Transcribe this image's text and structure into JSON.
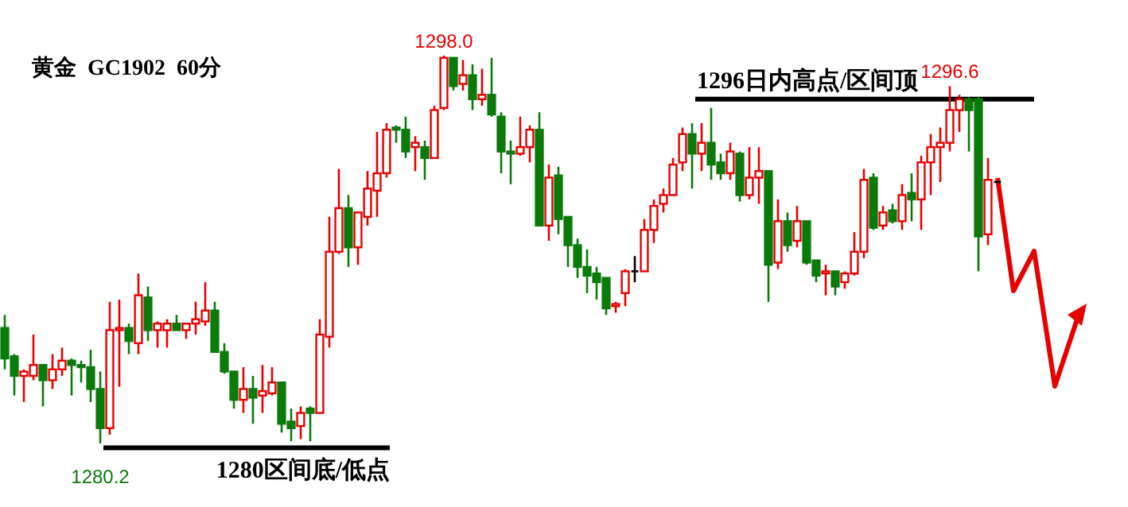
{
  "chart_data": {
    "type": "candlestick",
    "title": "黄金  GC1902  60分",
    "categories": [
      null,
      null,
      null,
      null,
      null,
      null,
      null,
      null,
      null,
      null,
      null,
      null,
      null,
      null,
      null,
      null,
      null,
      null,
      null,
      null,
      null,
      null,
      null,
      null,
      null,
      null,
      null,
      null,
      null,
      null,
      null,
      null,
      null,
      null,
      null,
      null,
      null,
      null,
      null,
      null,
      null,
      null,
      null,
      null,
      null,
      null,
      null,
      null,
      null,
      null,
      null,
      null,
      null,
      null,
      null,
      null,
      null,
      null,
      null,
      null,
      null,
      null,
      null,
      null,
      null,
      null,
      null,
      null,
      null,
      null,
      null,
      null,
      null,
      null,
      null,
      null,
      null,
      null,
      null,
      null,
      null,
      null,
      null,
      null,
      null,
      null,
      null,
      null,
      null,
      null,
      null,
      null,
      null,
      null,
      null,
      null,
      null,
      null,
      null,
      null,
      null,
      null,
      null,
      null,
      null
    ],
    "ohlc": [
      [
        1285.5,
        1286.1,
        1283.6,
        1284.1
      ],
      [
        1284.2,
        1284.3,
        1282.4,
        1283.3
      ],
      [
        1283.3,
        1283.6,
        1282.1,
        1283.5
      ],
      [
        1283.3,
        1285.2,
        1283.1,
        1283.8
      ],
      [
        1283.8,
        1283.8,
        1281.9,
        1283.1
      ],
      [
        1283.1,
        1284.3,
        1282.7,
        1283.6
      ],
      [
        1283.6,
        1284.6,
        1283.3,
        1284.0
      ],
      [
        1284.0,
        1284.1,
        1282.4,
        1283.8
      ],
      [
        1283.8,
        1284.0,
        1283.0,
        1283.7
      ],
      [
        1283.7,
        1284.5,
        1282.1,
        1282.7
      ],
      [
        1282.7,
        1283.5,
        1280.2,
        1280.9
      ],
      [
        1280.9,
        1286.7,
        1280.6,
        1285.4
      ],
      [
        1285.4,
        1286.8,
        1282.8,
        1285.5
      ],
      [
        1285.5,
        1285.7,
        1284.3,
        1284.9
      ],
      [
        1284.8,
        1288.0,
        1284.3,
        1287.0
      ],
      [
        1286.9,
        1287.4,
        1284.9,
        1285.4
      ],
      [
        1285.4,
        1285.8,
        1284.6,
        1285.7
      ],
      [
        1285.4,
        1285.9,
        1284.6,
        1285.7
      ],
      [
        1285.7,
        1286.1,
        1285.4,
        1285.4
      ],
      [
        1285.4,
        1285.7,
        1285.0,
        1285.7
      ],
      [
        1285.7,
        1286.7,
        1285.2,
        1285.9
      ],
      [
        1285.8,
        1287.6,
        1285.6,
        1286.3
      ],
      [
        1286.3,
        1286.7,
        1284.4,
        1284.4
      ],
      [
        1284.4,
        1284.8,
        1283.4,
        1283.5
      ],
      [
        1283.5,
        1283.5,
        1281.8,
        1282.2
      ],
      [
        1282.2,
        1283.7,
        1281.6,
        1282.7
      ],
      [
        1282.7,
        1283.3,
        1281.1,
        1282.3
      ],
      [
        1282.4,
        1283.8,
        1281.6,
        1282.6
      ],
      [
        1282.5,
        1283.7,
        1282.4,
        1283.0
      ],
      [
        1283.0,
        1283.0,
        1280.7,
        1281.1
      ],
      [
        1281.2,
        1281.8,
        1280.3,
        1280.9
      ],
      [
        1281.0,
        1281.9,
        1280.4,
        1281.6
      ],
      [
        1281.8,
        1281.9,
        1280.3,
        1281.6
      ],
      [
        1281.6,
        1285.9,
        1281.6,
        1285.2
      ],
      [
        1285.1,
        1290.6,
        1284.6,
        1289.0
      ],
      [
        1289.0,
        1292.8,
        1288.9,
        1291.0
      ],
      [
        1291.0,
        1291.6,
        1288.3,
        1289.2
      ],
      [
        1289.2,
        1290.8,
        1288.4,
        1290.8
      ],
      [
        1290.6,
        1292.7,
        1290.2,
        1291.9
      ],
      [
        1291.8,
        1294.5,
        1290.6,
        1292.6
      ],
      [
        1292.6,
        1294.9,
        1292.4,
        1294.6
      ],
      [
        1294.7,
        1294.8,
        1294.0,
        1294.6
      ],
      [
        1294.6,
        1295.2,
        1293.3,
        1293.6
      ],
      [
        1293.8,
        1294.3,
        1292.7,
        1294.0
      ],
      [
        1293.8,
        1294.1,
        1292.3,
        1293.3
      ],
      [
        1293.3,
        1295.7,
        1293.3,
        1295.5
      ],
      [
        1295.6,
        1298.0,
        1295.5,
        1297.9
      ],
      [
        1297.9,
        1297.9,
        1296.4,
        1296.6
      ],
      [
        1296.7,
        1297.8,
        1296.4,
        1297.1
      ],
      [
        1297.1,
        1297.6,
        1295.5,
        1296.0
      ],
      [
        1296.0,
        1297.4,
        1295.7,
        1296.2
      ],
      [
        1296.2,
        1297.9,
        1295.2,
        1295.3
      ],
      [
        1295.2,
        1295.4,
        1292.6,
        1293.6
      ],
      [
        1293.6,
        1294.1,
        1292.1,
        1293.5
      ],
      [
        1293.5,
        1295.2,
        1293.4,
        1293.8
      ],
      [
        1293.8,
        1294.8,
        1293.1,
        1294.6
      ],
      [
        1294.6,
        1295.4,
        1290.2,
        1290.2
      ],
      [
        1290.2,
        1293.0,
        1289.5,
        1292.4
      ],
      [
        1292.5,
        1292.9,
        1289.8,
        1290.5
      ],
      [
        1290.6,
        1290.6,
        1288.3,
        1289.3
      ],
      [
        1289.3,
        1289.6,
        1287.8,
        1288.3
      ],
      [
        1288.3,
        1289.1,
        1287.1,
        1287.9
      ],
      [
        1288.0,
        1288.3,
        1286.8,
        1287.6
      ],
      [
        1287.8,
        1287.8,
        1286.1,
        1286.4
      ],
      [
        1286.5,
        1286.7,
        1286.2,
        1286.6
      ],
      [
        1287.1,
        1288.2,
        1286.5,
        1288.1
      ],
      [
        1288.1,
        1288.8,
        1287.6,
        1288.1
      ],
      [
        1288.1,
        1290.5,
        1288.1,
        1290.0
      ],
      [
        1290.0,
        1291.4,
        1289.4,
        1291.1
      ],
      [
        1291.2,
        1291.9,
        1290.8,
        1291.6
      ],
      [
        1291.6,
        1293.3,
        1291.6,
        1293.0
      ],
      [
        1293.1,
        1294.7,
        1292.7,
        1294.4
      ],
      [
        1294.4,
        1294.9,
        1291.9,
        1293.5
      ],
      [
        1293.5,
        1294.9,
        1292.7,
        1294.0
      ],
      [
        1294.0,
        1295.6,
        1292.3,
        1293.0
      ],
      [
        1293.1,
        1293.5,
        1292.3,
        1292.6
      ],
      [
        1292.6,
        1294.0,
        1292.3,
        1293.6
      ],
      [
        1293.5,
        1293.6,
        1291.3,
        1291.6
      ],
      [
        1291.6,
        1293.8,
        1291.4,
        1292.4
      ],
      [
        1292.4,
        1293.8,
        1291.2,
        1292.7
      ],
      [
        1292.7,
        1292.7,
        1286.7,
        1288.4
      ],
      [
        1288.5,
        1291.4,
        1288.2,
        1290.4
      ],
      [
        1290.4,
        1290.8,
        1289.0,
        1289.3
      ],
      [
        1289.5,
        1291.1,
        1289.2,
        1290.4
      ],
      [
        1290.4,
        1290.4,
        1288.4,
        1288.5
      ],
      [
        1288.6,
        1288.6,
        1287.6,
        1287.9
      ],
      [
        1288.0,
        1288.4,
        1287.0,
        1288.1
      ],
      [
        1288.1,
        1288.1,
        1287.0,
        1287.4
      ],
      [
        1287.6,
        1288.1,
        1287.3,
        1288.0
      ],
      [
        1288.0,
        1289.9,
        1287.9,
        1289.0
      ],
      [
        1289.0,
        1292.8,
        1288.7,
        1292.3
      ],
      [
        1292.4,
        1292.6,
        1290.0,
        1290.1
      ],
      [
        1290.2,
        1291.1,
        1290.0,
        1290.8
      ],
      [
        1290.9,
        1291.2,
        1290.3,
        1290.4
      ],
      [
        1290.4,
        1292.1,
        1290.0,
        1291.6
      ],
      [
        1291.7,
        1292.6,
        1290.4,
        1291.4
      ],
      [
        1291.4,
        1293.4,
        1290.0,
        1293.1
      ],
      [
        1293.1,
        1294.4,
        1291.6,
        1293.8
      ],
      [
        1293.8,
        1294.7,
        1292.2,
        1294.0
      ],
      [
        1294.0,
        1296.6,
        1293.6,
        1295.5
      ],
      [
        1295.5,
        1296.2,
        1294.5,
        1296.0
      ],
      [
        1296.0,
        1296.1,
        1293.6,
        1295.5
      ],
      [
        1296.0,
        1296.1,
        1288.1,
        1289.7
      ],
      [
        1289.8,
        1293.3,
        1289.3,
        1292.3
      ],
      [
        1292.2,
        1292.2,
        1292.2,
        1292.2
      ]
    ],
    "annotations": [
      {
        "text": "1298.0",
        "y": 1298.0
      },
      {
        "text": "1296.6",
        "y": 1296.6
      },
      {
        "text": "1280.2",
        "y": 1280.2
      }
    ],
    "ref_lines": [
      {
        "axis": "y",
        "value": 1296,
        "label": "1296日内高点/区间顶"
      },
      {
        "axis": "y",
        "value": 1280,
        "label": "1280区间底/低点"
      }
    ]
  }
}
